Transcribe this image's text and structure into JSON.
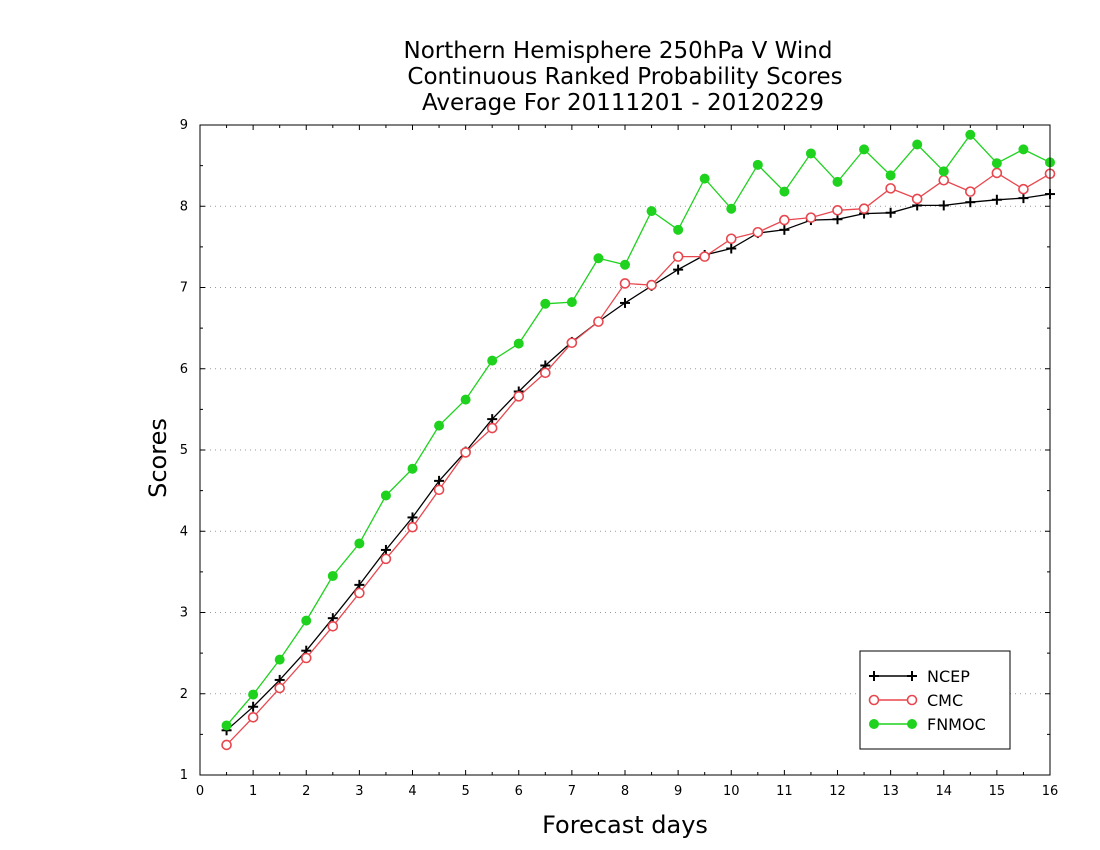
{
  "chart_data": {
    "type": "line",
    "title_lines": [
      "Northern Hemisphere 250hPa V Wind",
      "Continuous Ranked Probability Scores",
      "Average For 20111201 - 20120229"
    ],
    "xlabel": "Forecast days",
    "ylabel": "Scores",
    "xlim": [
      0,
      16
    ],
    "ylim": [
      1,
      9
    ],
    "xticks": [
      "0",
      "1",
      "2",
      "3",
      "4",
      "5",
      "6",
      "7",
      "8",
      "9",
      "10",
      "11",
      "12",
      "13",
      "14",
      "15",
      "16"
    ],
    "yticks": [
      "1",
      "2",
      "3",
      "4",
      "5",
      "6",
      "7",
      "8",
      "9"
    ],
    "grid": "horizontal dotted",
    "legend_position": "bottom-right",
    "x": [
      0.5,
      1,
      1.5,
      2,
      2.5,
      3,
      3.5,
      4,
      4.5,
      5,
      5.5,
      6,
      6.5,
      7,
      7.5,
      8,
      8.5,
      9,
      9.5,
      10,
      10.5,
      11,
      11.5,
      12,
      12.5,
      13,
      13.5,
      14,
      14.5,
      15,
      15.5,
      16
    ],
    "series": [
      {
        "name": "NCEP",
        "color": "#000000",
        "marker": "plus",
        "values": [
          1.55,
          1.84,
          2.17,
          2.53,
          2.93,
          3.34,
          3.77,
          4.17,
          4.62,
          4.98,
          5.38,
          5.72,
          6.04,
          6.33,
          6.58,
          6.81,
          7.02,
          7.22,
          7.4,
          7.48,
          7.67,
          7.71,
          7.83,
          7.84,
          7.91,
          7.92,
          8.01,
          8.01,
          8.05,
          8.08,
          8.1,
          8.15
        ]
      },
      {
        "name": "CMC",
        "color": "#e8474f",
        "marker": "open-circle",
        "values": [
          1.37,
          1.71,
          2.07,
          2.44,
          2.83,
          3.24,
          3.66,
          4.05,
          4.51,
          4.97,
          5.27,
          5.66,
          5.95,
          6.32,
          6.58,
          7.05,
          7.03,
          7.38,
          7.38,
          7.6,
          7.68,
          7.83,
          7.86,
          7.95,
          7.97,
          8.22,
          8.09,
          8.32,
          8.18,
          8.41,
          8.21,
          8.4
        ]
      },
      {
        "name": "FNMOC",
        "color": "#1ed21e",
        "marker": "filled-circle",
        "values": [
          1.61,
          1.99,
          2.42,
          2.9,
          3.45,
          3.85,
          4.44,
          4.77,
          5.3,
          5.62,
          6.1,
          6.31,
          6.8,
          6.82,
          7.36,
          7.28,
          7.94,
          7.71,
          8.34,
          7.97,
          8.51,
          8.18,
          8.65,
          8.3,
          8.7,
          8.38,
          8.76,
          8.43,
          8.88,
          8.53,
          8.7,
          8.54
        ]
      }
    ]
  }
}
